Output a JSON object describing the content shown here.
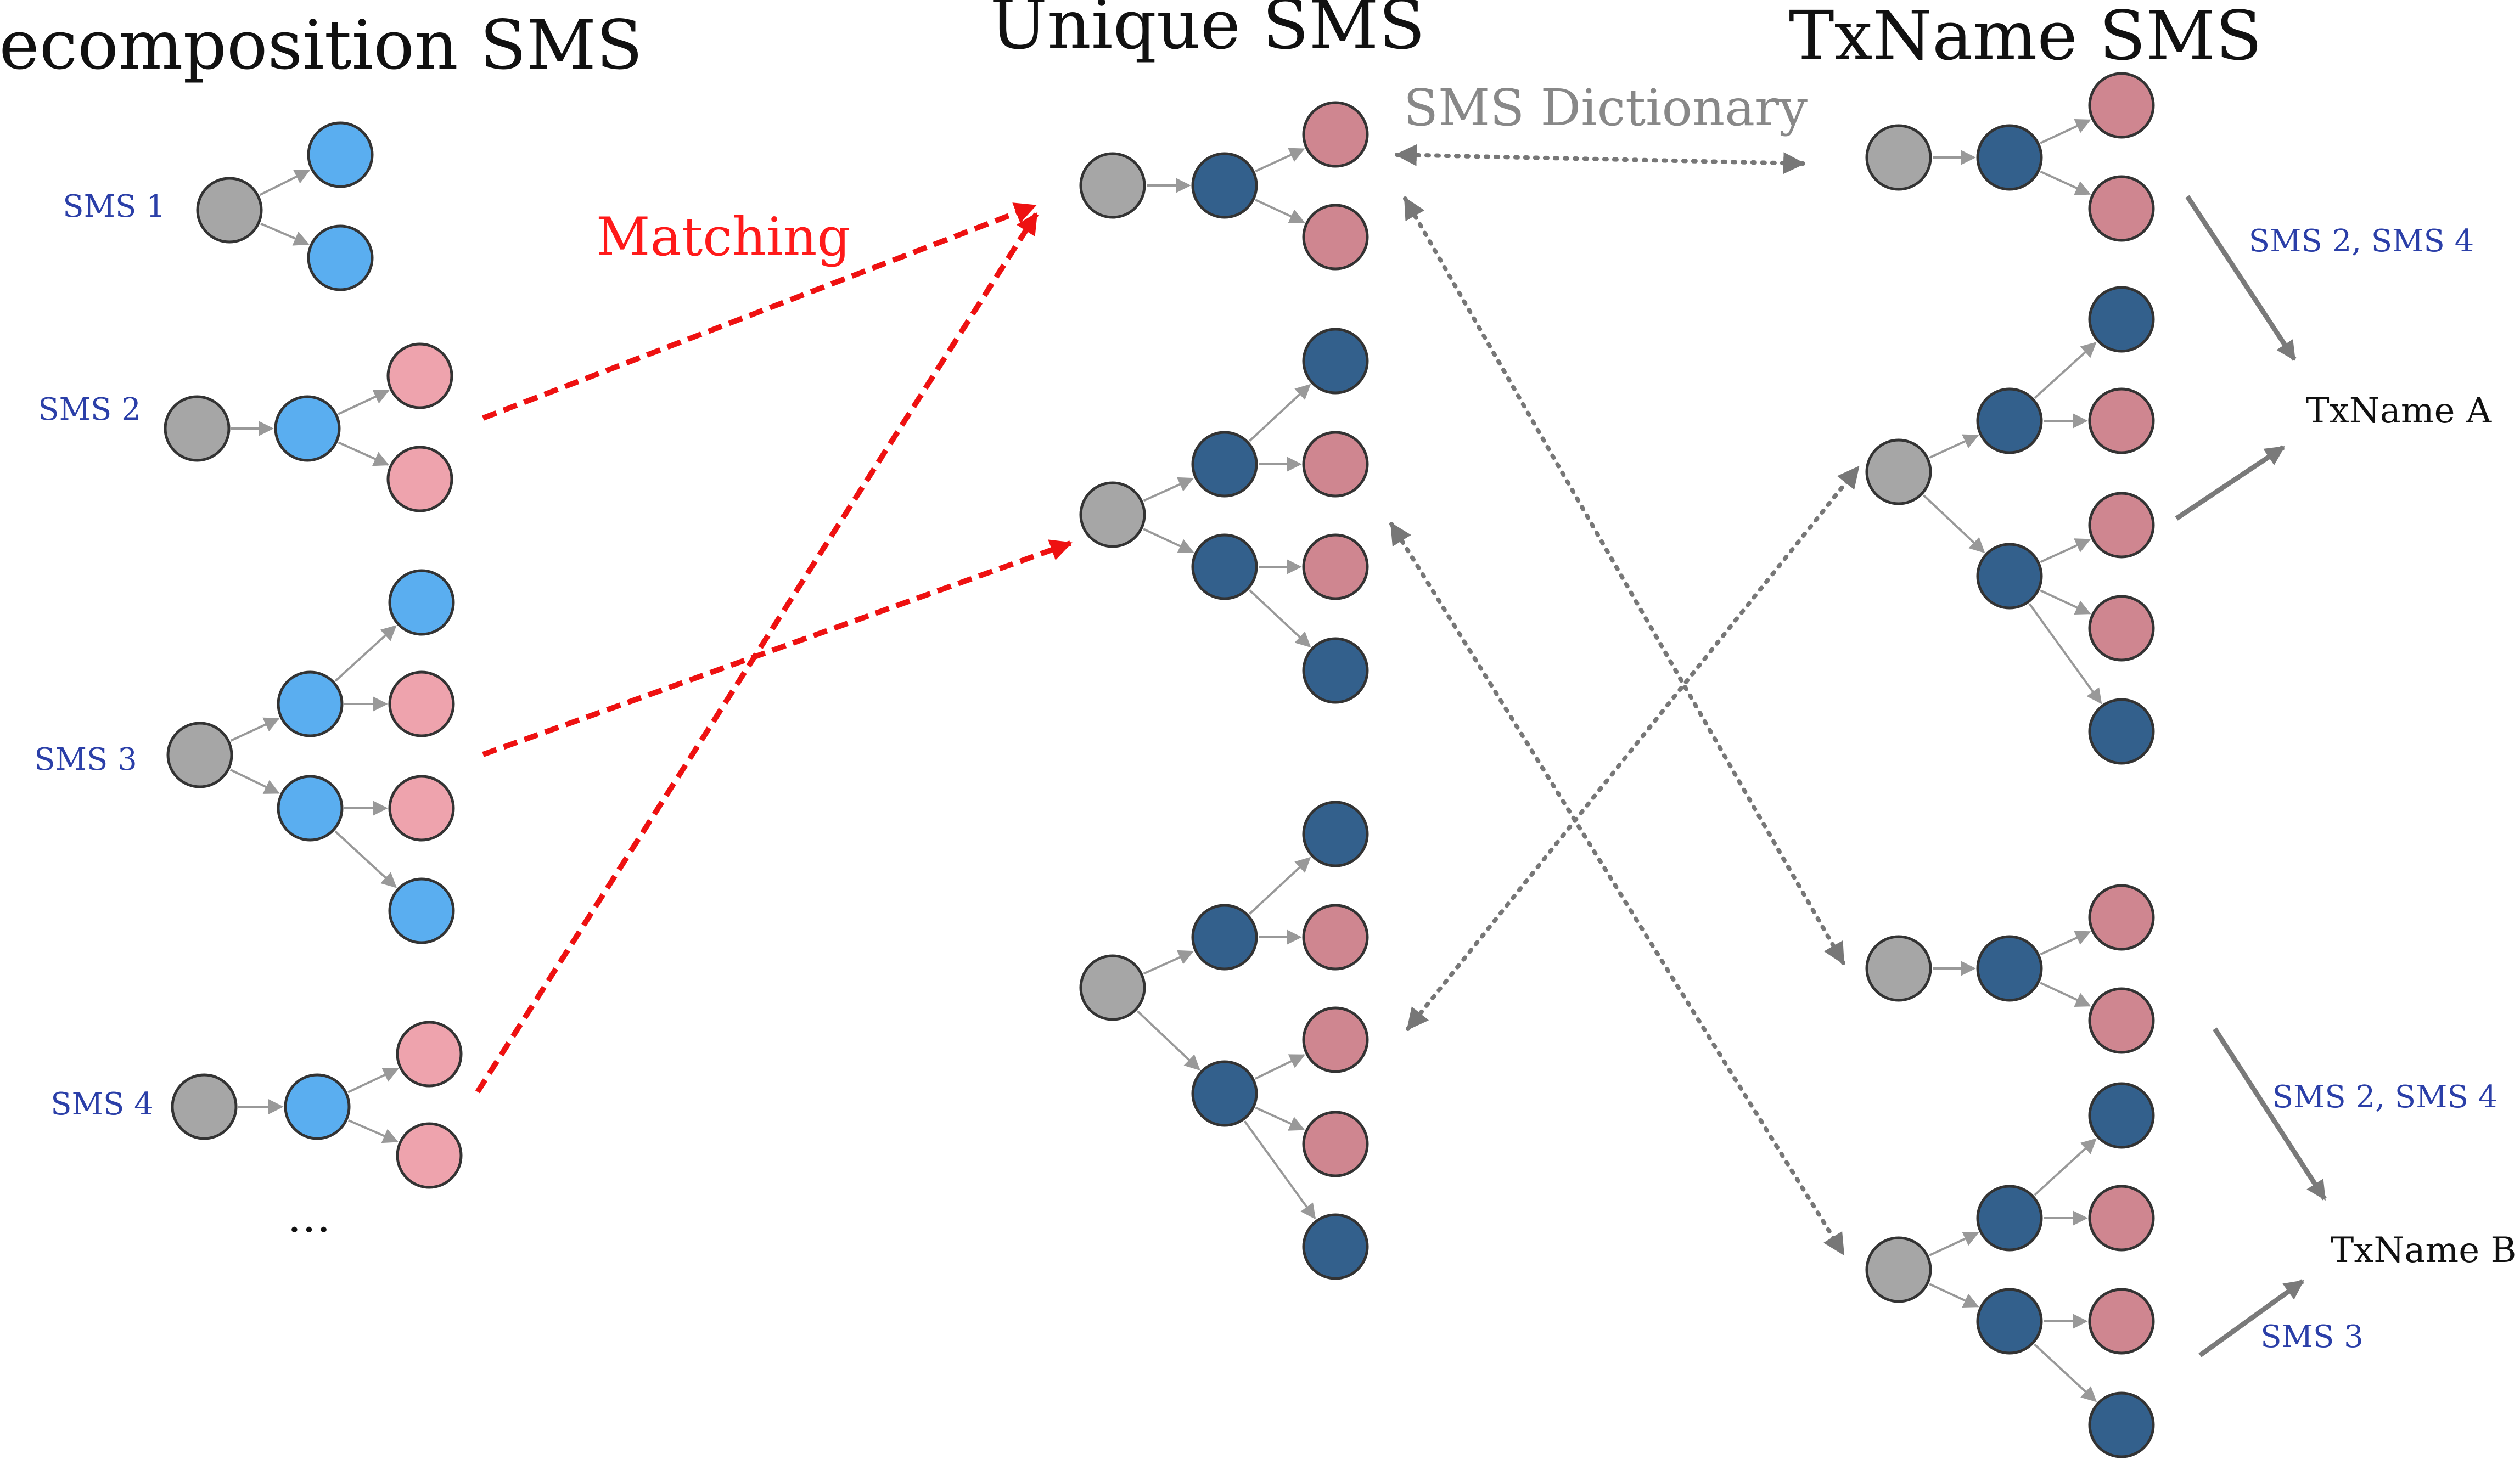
{
  "titles": {
    "decomposition": "Decomposition SMS",
    "unique": "Unique SMS",
    "txname": "TxName SMS"
  },
  "labels": {
    "matching": "Matching",
    "dictionary": "SMS Dictionary",
    "ellipsis": "…"
  },
  "decomposition_sms": [
    {
      "label": "SMS 1"
    },
    {
      "label": "SMS 2"
    },
    {
      "label": "SMS 3"
    },
    {
      "label": "SMS 4"
    }
  ],
  "txnames": [
    {
      "name": "TxName A",
      "upper_label": "SMS 2, SMS 4"
    },
    {
      "name": "TxName B",
      "upper_label": "SMS 2, SMS 4",
      "lower_label": "SMS 3"
    }
  ],
  "colors": {
    "root": "#a6a6a6",
    "decomp_light_blue": "#5aaef0",
    "dark_blue": "#33608c",
    "pink_light": "#eea3ad",
    "pink_muted": "#cf8690",
    "matching_arrow": "#ee1111",
    "dictionary_arrow": "#777777",
    "sms_label": "#2b3fa8"
  }
}
